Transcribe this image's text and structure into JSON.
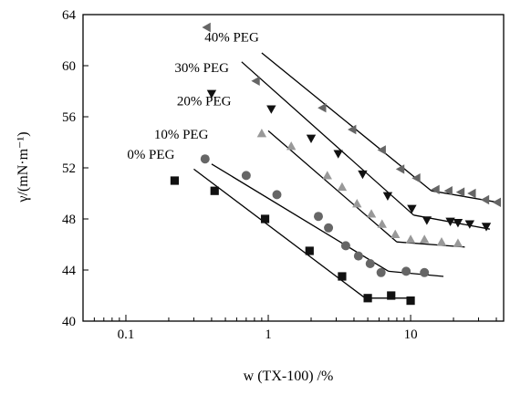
{
  "chart_data": {
    "type": "scatter",
    "title": "",
    "xlabel": "w (TX-100) /%",
    "ylabel": "γ/(mN·m⁻¹)",
    "xscale": "log",
    "xlim": [
      0.05,
      45
    ],
    "ylim": [
      40,
      64
    ],
    "xticks": [
      {
        "value": 0.1,
        "label": "0.1"
      },
      {
        "value": 1,
        "label": "1"
      },
      {
        "value": 10,
        "label": "10"
      }
    ],
    "yticks": [
      {
        "value": 40,
        "label": "40"
      },
      {
        "value": 44,
        "label": "44"
      },
      {
        "value": 48,
        "label": "48"
      },
      {
        "value": 52,
        "label": "52"
      },
      {
        "value": 56,
        "label": "56"
      },
      {
        "value": 60,
        "label": "60"
      },
      {
        "value": 64,
        "label": "64"
      }
    ],
    "grid": false,
    "legend": "none (series labelled directly)",
    "series": [
      {
        "name": "0% PEG",
        "marker": "square",
        "color": "#111111",
        "points": [
          [
            0.22,
            51.0
          ],
          [
            0.42,
            50.2
          ],
          [
            0.95,
            48.0
          ],
          [
            1.95,
            45.5
          ],
          [
            3.3,
            43.5
          ],
          [
            5.0,
            41.8
          ],
          [
            7.3,
            42.0
          ],
          [
            10.0,
            41.6
          ]
        ],
        "fit": [
          [
            [
              0.3,
              51.9
            ],
            [
              4.8,
              41.8
            ]
          ],
          [
            [
              4.8,
              41.8
            ],
            [
              10.5,
              41.8
            ]
          ]
        ]
      },
      {
        "name": "10% PEG",
        "marker": "circle",
        "color": "#666666",
        "points": [
          [
            0.36,
            52.7
          ],
          [
            0.7,
            51.4
          ],
          [
            1.15,
            49.9
          ],
          [
            2.25,
            48.2
          ],
          [
            2.65,
            47.3
          ],
          [
            3.5,
            45.9
          ],
          [
            4.3,
            45.1
          ],
          [
            5.2,
            44.5
          ],
          [
            6.2,
            43.8
          ],
          [
            9.3,
            43.9
          ],
          [
            12.5,
            43.8
          ]
        ],
        "fit": [
          [
            [
              0.4,
              52.3
            ],
            [
              7.0,
              43.9
            ]
          ],
          [
            [
              7.0,
              43.9
            ],
            [
              17.0,
              43.5
            ]
          ]
        ]
      },
      {
        "name": "20% PEG",
        "marker": "triangle-up",
        "color": "#999999",
        "points": [
          [
            0.9,
            54.7
          ],
          [
            1.45,
            53.7
          ],
          [
            2.6,
            51.4
          ],
          [
            3.3,
            50.5
          ],
          [
            4.2,
            49.2
          ],
          [
            5.3,
            48.4
          ],
          [
            6.3,
            47.6
          ],
          [
            7.8,
            46.8
          ],
          [
            10.0,
            46.4
          ],
          [
            12.5,
            46.4
          ],
          [
            16.5,
            46.2
          ],
          [
            21.5,
            46.1
          ]
        ],
        "fit": [
          [
            [
              1.0,
              54.9
            ],
            [
              8.0,
              46.2
            ]
          ],
          [
            [
              8.0,
              46.2
            ],
            [
              24.0,
              45.8
            ]
          ]
        ]
      },
      {
        "name": "30% PEG",
        "marker": "triangle-down",
        "color": "#111111",
        "points": [
          [
            0.4,
            57.8
          ],
          [
            1.05,
            56.6
          ],
          [
            2.0,
            54.3
          ],
          [
            3.1,
            53.1
          ],
          [
            4.6,
            51.5
          ],
          [
            6.9,
            49.8
          ],
          [
            10.2,
            48.8
          ],
          [
            13.0,
            47.9
          ],
          [
            19.0,
            47.8
          ],
          [
            21.5,
            47.7
          ],
          [
            26.0,
            47.6
          ],
          [
            34.0,
            47.4
          ]
        ],
        "fit": [
          [
            [
              0.65,
              60.3
            ],
            [
              10.5,
              48.3
            ]
          ],
          [
            [
              10.5,
              48.3
            ],
            [
              36.0,
              47.2
            ]
          ]
        ]
      },
      {
        "name": "40% PEG",
        "marker": "triangle-left",
        "color": "#666666",
        "points": [
          [
            0.37,
            63.0
          ],
          [
            0.82,
            58.8
          ],
          [
            2.4,
            56.7
          ],
          [
            3.9,
            55.0
          ],
          [
            6.3,
            53.4
          ],
          [
            8.5,
            51.9
          ],
          [
            11.0,
            51.2
          ],
          [
            15.0,
            50.3
          ],
          [
            18.5,
            50.2
          ],
          [
            22.5,
            50.1
          ],
          [
            27.0,
            50.0
          ],
          [
            33.5,
            49.5
          ],
          [
            40.5,
            49.3
          ]
        ],
        "fit": [
          [
            [
              0.9,
              61.0
            ],
            [
              14.0,
              50.2
            ]
          ],
          [
            [
              14.0,
              50.2
            ],
            [
              41.0,
              49.3
            ]
          ]
        ]
      }
    ]
  }
}
